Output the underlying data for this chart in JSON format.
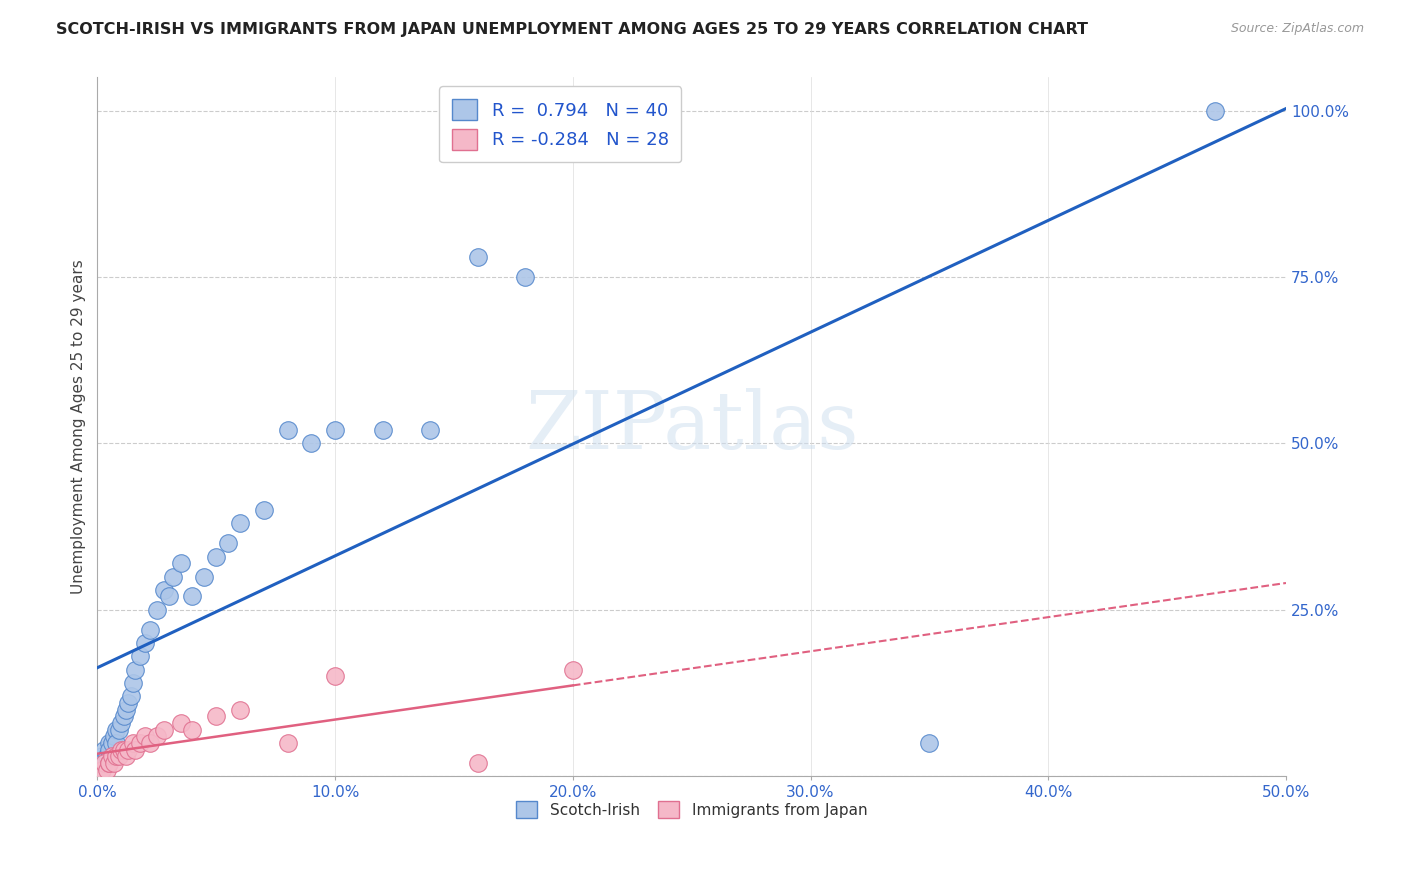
{
  "title": "SCOTCH-IRISH VS IMMIGRANTS FROM JAPAN UNEMPLOYMENT AMONG AGES 25 TO 29 YEARS CORRELATION CHART",
  "source": "Source: ZipAtlas.com",
  "ylabel": "Unemployment Among Ages 25 to 29 years",
  "xlim": [
    0.0,
    0.5
  ],
  "ylim": [
    0.0,
    1.05
  ],
  "xticks": [
    0.0,
    0.1,
    0.2,
    0.3,
    0.4,
    0.5
  ],
  "xticklabels": [
    "0.0%",
    "10.0%",
    "20.0%",
    "30.0%",
    "40.0%",
    "50.0%"
  ],
  "yticks_right": [
    0.25,
    0.5,
    0.75,
    1.0
  ],
  "yticklabels_right": [
    "25.0%",
    "50.0%",
    "75.0%",
    "100.0%"
  ],
  "background_color": "#ffffff",
  "grid_color": "#cccccc",
  "watermark": "ZIPatlas",
  "legend_r1_label": "R =  0.794   N = 40",
  "legend_r2_label": "R = -0.284   N = 28",
  "scotch_irish_color": "#adc6e8",
  "scotch_irish_edge_color": "#5588cc",
  "scotch_irish_line_color": "#2060c0",
  "japan_color": "#f5b8c8",
  "japan_edge_color": "#e07090",
  "japan_line_color": "#e06080",
  "scotch_irish_x": [
    0.002,
    0.003,
    0.004,
    0.005,
    0.005,
    0.006,
    0.007,
    0.008,
    0.008,
    0.009,
    0.01,
    0.011,
    0.012,
    0.013,
    0.014,
    0.015,
    0.016,
    0.018,
    0.02,
    0.022,
    0.025,
    0.028,
    0.03,
    0.032,
    0.035,
    0.04,
    0.045,
    0.05,
    0.055,
    0.06,
    0.07,
    0.08,
    0.09,
    0.1,
    0.12,
    0.14,
    0.16,
    0.18,
    0.35,
    0.47
  ],
  "scotch_irish_y": [
    0.03,
    0.04,
    0.03,
    0.05,
    0.04,
    0.05,
    0.06,
    0.07,
    0.05,
    0.07,
    0.08,
    0.09,
    0.1,
    0.11,
    0.12,
    0.14,
    0.16,
    0.18,
    0.2,
    0.22,
    0.25,
    0.28,
    0.27,
    0.3,
    0.32,
    0.27,
    0.3,
    0.33,
    0.35,
    0.38,
    0.4,
    0.52,
    0.5,
    0.52,
    0.52,
    0.52,
    0.78,
    0.75,
    0.05,
    1.0
  ],
  "japan_x": [
    0.002,
    0.003,
    0.004,
    0.005,
    0.005,
    0.006,
    0.007,
    0.008,
    0.009,
    0.01,
    0.011,
    0.012,
    0.013,
    0.015,
    0.016,
    0.018,
    0.02,
    0.022,
    0.025,
    0.028,
    0.035,
    0.04,
    0.05,
    0.06,
    0.08,
    0.1,
    0.16,
    0.2
  ],
  "japan_y": [
    0.01,
    0.02,
    0.01,
    0.02,
    0.02,
    0.03,
    0.02,
    0.03,
    0.03,
    0.04,
    0.04,
    0.03,
    0.04,
    0.05,
    0.04,
    0.05,
    0.06,
    0.05,
    0.06,
    0.07,
    0.08,
    0.07,
    0.09,
    0.1,
    0.05,
    0.15,
    0.02,
    0.16
  ],
  "title_fontsize": 11.5,
  "source_fontsize": 9,
  "tick_fontsize": 11,
  "ylabel_fontsize": 11
}
